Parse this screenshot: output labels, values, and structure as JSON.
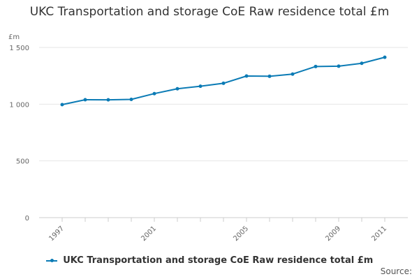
{
  "chart_data": {
    "type": "line",
    "title": "UKC Transportation and storage CoE Raw residence total £m",
    "ylabel": "£m",
    "xlabel": "",
    "ylim": [
      0,
      1500
    ],
    "yticks": [
      {
        "value": 0,
        "label": "0"
      },
      {
        "value": 500,
        "label": "500"
      },
      {
        "value": 1000,
        "label": "1 000"
      },
      {
        "value": 1500,
        "label": "1 500"
      }
    ],
    "xticks": [
      "1997",
      "2001",
      "2005",
      "2009",
      "2011"
    ],
    "x": [
      1997,
      1998,
      1999,
      2000,
      2001,
      2002,
      2003,
      2004,
      2005,
      2006,
      2007,
      2008,
      2009,
      2010,
      2011
    ],
    "series": [
      {
        "name": "UKC Transportation and storage CoE Raw residence total £m",
        "color": "#0b7bb5",
        "values": [
          996,
          1039,
          1038,
          1042,
          1093,
          1136,
          1158,
          1184,
          1248,
          1246,
          1265,
          1332,
          1335,
          1360,
          1413
        ]
      }
    ],
    "grid": true,
    "legend": "bottom"
  },
  "footer": {
    "source_label": "Source:"
  }
}
